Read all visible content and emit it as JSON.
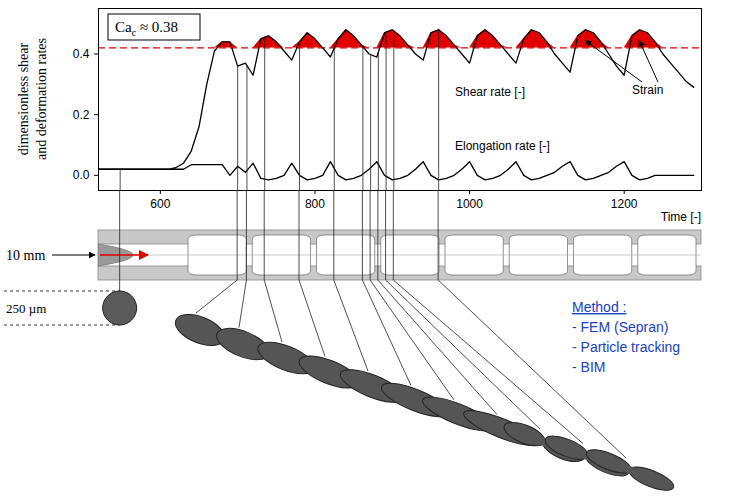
{
  "chart_data": {
    "type": "line",
    "xlabel": "Time [-]",
    "ylabel": [
      "dimensionless shear",
      "and deformation rates"
    ],
    "xlim": [
      520,
      1300
    ],
    "xticks": [
      600,
      800,
      1000,
      1200
    ],
    "ylim": [
      -0.05,
      0.55
    ],
    "yticks": [
      {
        "value": 0,
        "label": "0.0"
      },
      0.2,
      0.4
    ],
    "x": [
      520,
      530,
      540,
      550,
      560,
      570,
      580,
      590,
      600,
      610,
      620,
      630,
      640,
      650,
      660,
      670,
      680,
      690,
      700,
      710,
      720,
      730,
      740,
      750,
      760,
      770,
      780,
      790,
      800,
      810,
      820,
      830,
      840,
      850,
      860,
      870,
      880,
      890,
      900,
      910,
      920,
      930,
      940,
      950,
      960,
      970,
      980,
      990,
      1000,
      1010,
      1020,
      1030,
      1040,
      1050,
      1060,
      1070,
      1080,
      1090,
      1100,
      1110,
      1120,
      1130,
      1140,
      1150,
      1160,
      1170,
      1180,
      1190,
      1200,
      1210,
      1220,
      1230,
      1240,
      1250,
      1260,
      1270,
      1280,
      1290
    ],
    "series": [
      {
        "name": "Shear rate [-]",
        "color": "#000000",
        "line_style": "solid",
        "values": [
          0.02,
          0.02,
          0.02,
          0.02,
          0.02,
          0.02,
          0.02,
          0.02,
          0.02,
          0.02,
          0.025,
          0.04,
          0.08,
          0.16,
          0.3,
          0.41,
          0.44,
          0.44,
          0.36,
          0.37,
          0.33,
          0.45,
          0.46,
          0.44,
          0.41,
          0.38,
          0.44,
          0.47,
          0.45,
          0.42,
          0.39,
          0.45,
          0.48,
          0.46,
          0.43,
          0.4,
          0.39,
          0.47,
          0.48,
          0.46,
          0.43,
          0.4,
          0.38,
          0.47,
          0.48,
          0.46,
          0.43,
          0.4,
          0.37,
          0.46,
          0.48,
          0.46,
          0.43,
          0.4,
          0.37,
          0.45,
          0.48,
          0.47,
          0.44,
          0.4,
          0.37,
          0.34,
          0.46,
          0.48,
          0.47,
          0.44,
          0.4,
          0.36,
          0.33,
          0.46,
          0.48,
          0.47,
          0.44,
          0.4,
          0.37,
          0.34,
          0.31,
          0.29
        ]
      },
      {
        "name": "Elongation rate [-]",
        "color": "#000000",
        "line_style": "solid",
        "values": [
          0.02,
          0.02,
          0.02,
          0.02,
          0.02,
          0.02,
          0.02,
          0.02,
          0.02,
          0.02,
          0.02,
          0.02,
          0.035,
          0.035,
          0.035,
          0.035,
          0.035,
          0,
          0.03,
          0.01,
          0.04,
          -0.01,
          -0.015,
          -0.01,
          0,
          0.04,
          0,
          -0.015,
          -0.01,
          0,
          0.045,
          0,
          -0.015,
          -0.01,
          0,
          0.02,
          0.045,
          0,
          -0.015,
          -0.01,
          0,
          0.02,
          0.045,
          0,
          -0.015,
          -0.01,
          0,
          0.02,
          0.045,
          0,
          -0.015,
          -0.01,
          0,
          0.02,
          0.045,
          0,
          -0.015,
          -0.01,
          0,
          0.01,
          0.03,
          0.045,
          0,
          -0.015,
          -0.01,
          0,
          0.01,
          0.03,
          0.045,
          0,
          -0.015,
          -0.01,
          0,
          0,
          0,
          0,
          0,
          0
        ]
      }
    ],
    "critical_shear_rate": {
      "value": 0.42,
      "color": "#e00000",
      "line_style": "dashed"
    },
    "fill_above_critical": {
      "label": "Strain",
      "color": "#e00000"
    },
    "annotation": {
      "text": "Ca",
      "subscript": "c",
      "suffix": " ≈ 0.38"
    },
    "snapshot_times": [
      548,
      700,
      712,
      735,
      780,
      825,
      862,
      872,
      882,
      892,
      902,
      960
    ]
  },
  "diagram": {
    "channel_label": "10 mm",
    "droplet_label": "250 µm",
    "method": {
      "title": "Method :",
      "items": [
        "- FEM (Sepran)",
        "- Particle tracking",
        "- BIM"
      ],
      "color": "#2040c0"
    }
  }
}
